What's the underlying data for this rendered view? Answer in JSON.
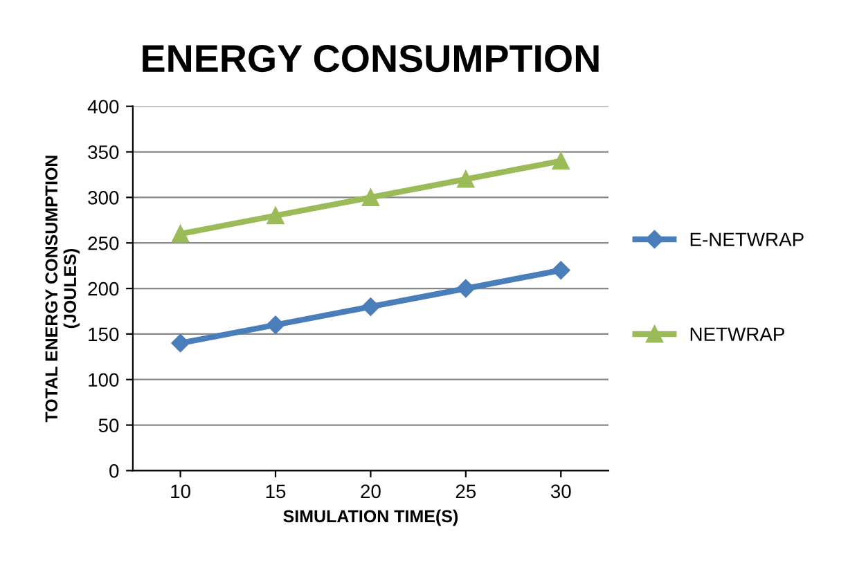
{
  "chart_data": {
    "type": "line",
    "title": "ENERGY CONSUMPTION",
    "xlabel": "SIMULATION TIME(S)",
    "ylabel": "TOTAL ENERGY CONSUMPTION\n(JOULES)",
    "categories": [
      "10",
      "15",
      "20",
      "25",
      "30"
    ],
    "series": [
      {
        "name": "E-NETWRAP",
        "color": "#4a7ebb",
        "marker": "diamond",
        "values": [
          140,
          160,
          180,
          200,
          220
        ]
      },
      {
        "name": "NETWRAP",
        "color": "#9bbb59",
        "marker": "triangle",
        "values": [
          260,
          280,
          300,
          320,
          340
        ]
      }
    ],
    "ylim": [
      0,
      400
    ],
    "yticks": [
      0,
      50,
      100,
      150,
      200,
      250,
      300,
      350,
      400
    ],
    "grid": "y",
    "legend": "right",
    "line_style": "solid"
  }
}
